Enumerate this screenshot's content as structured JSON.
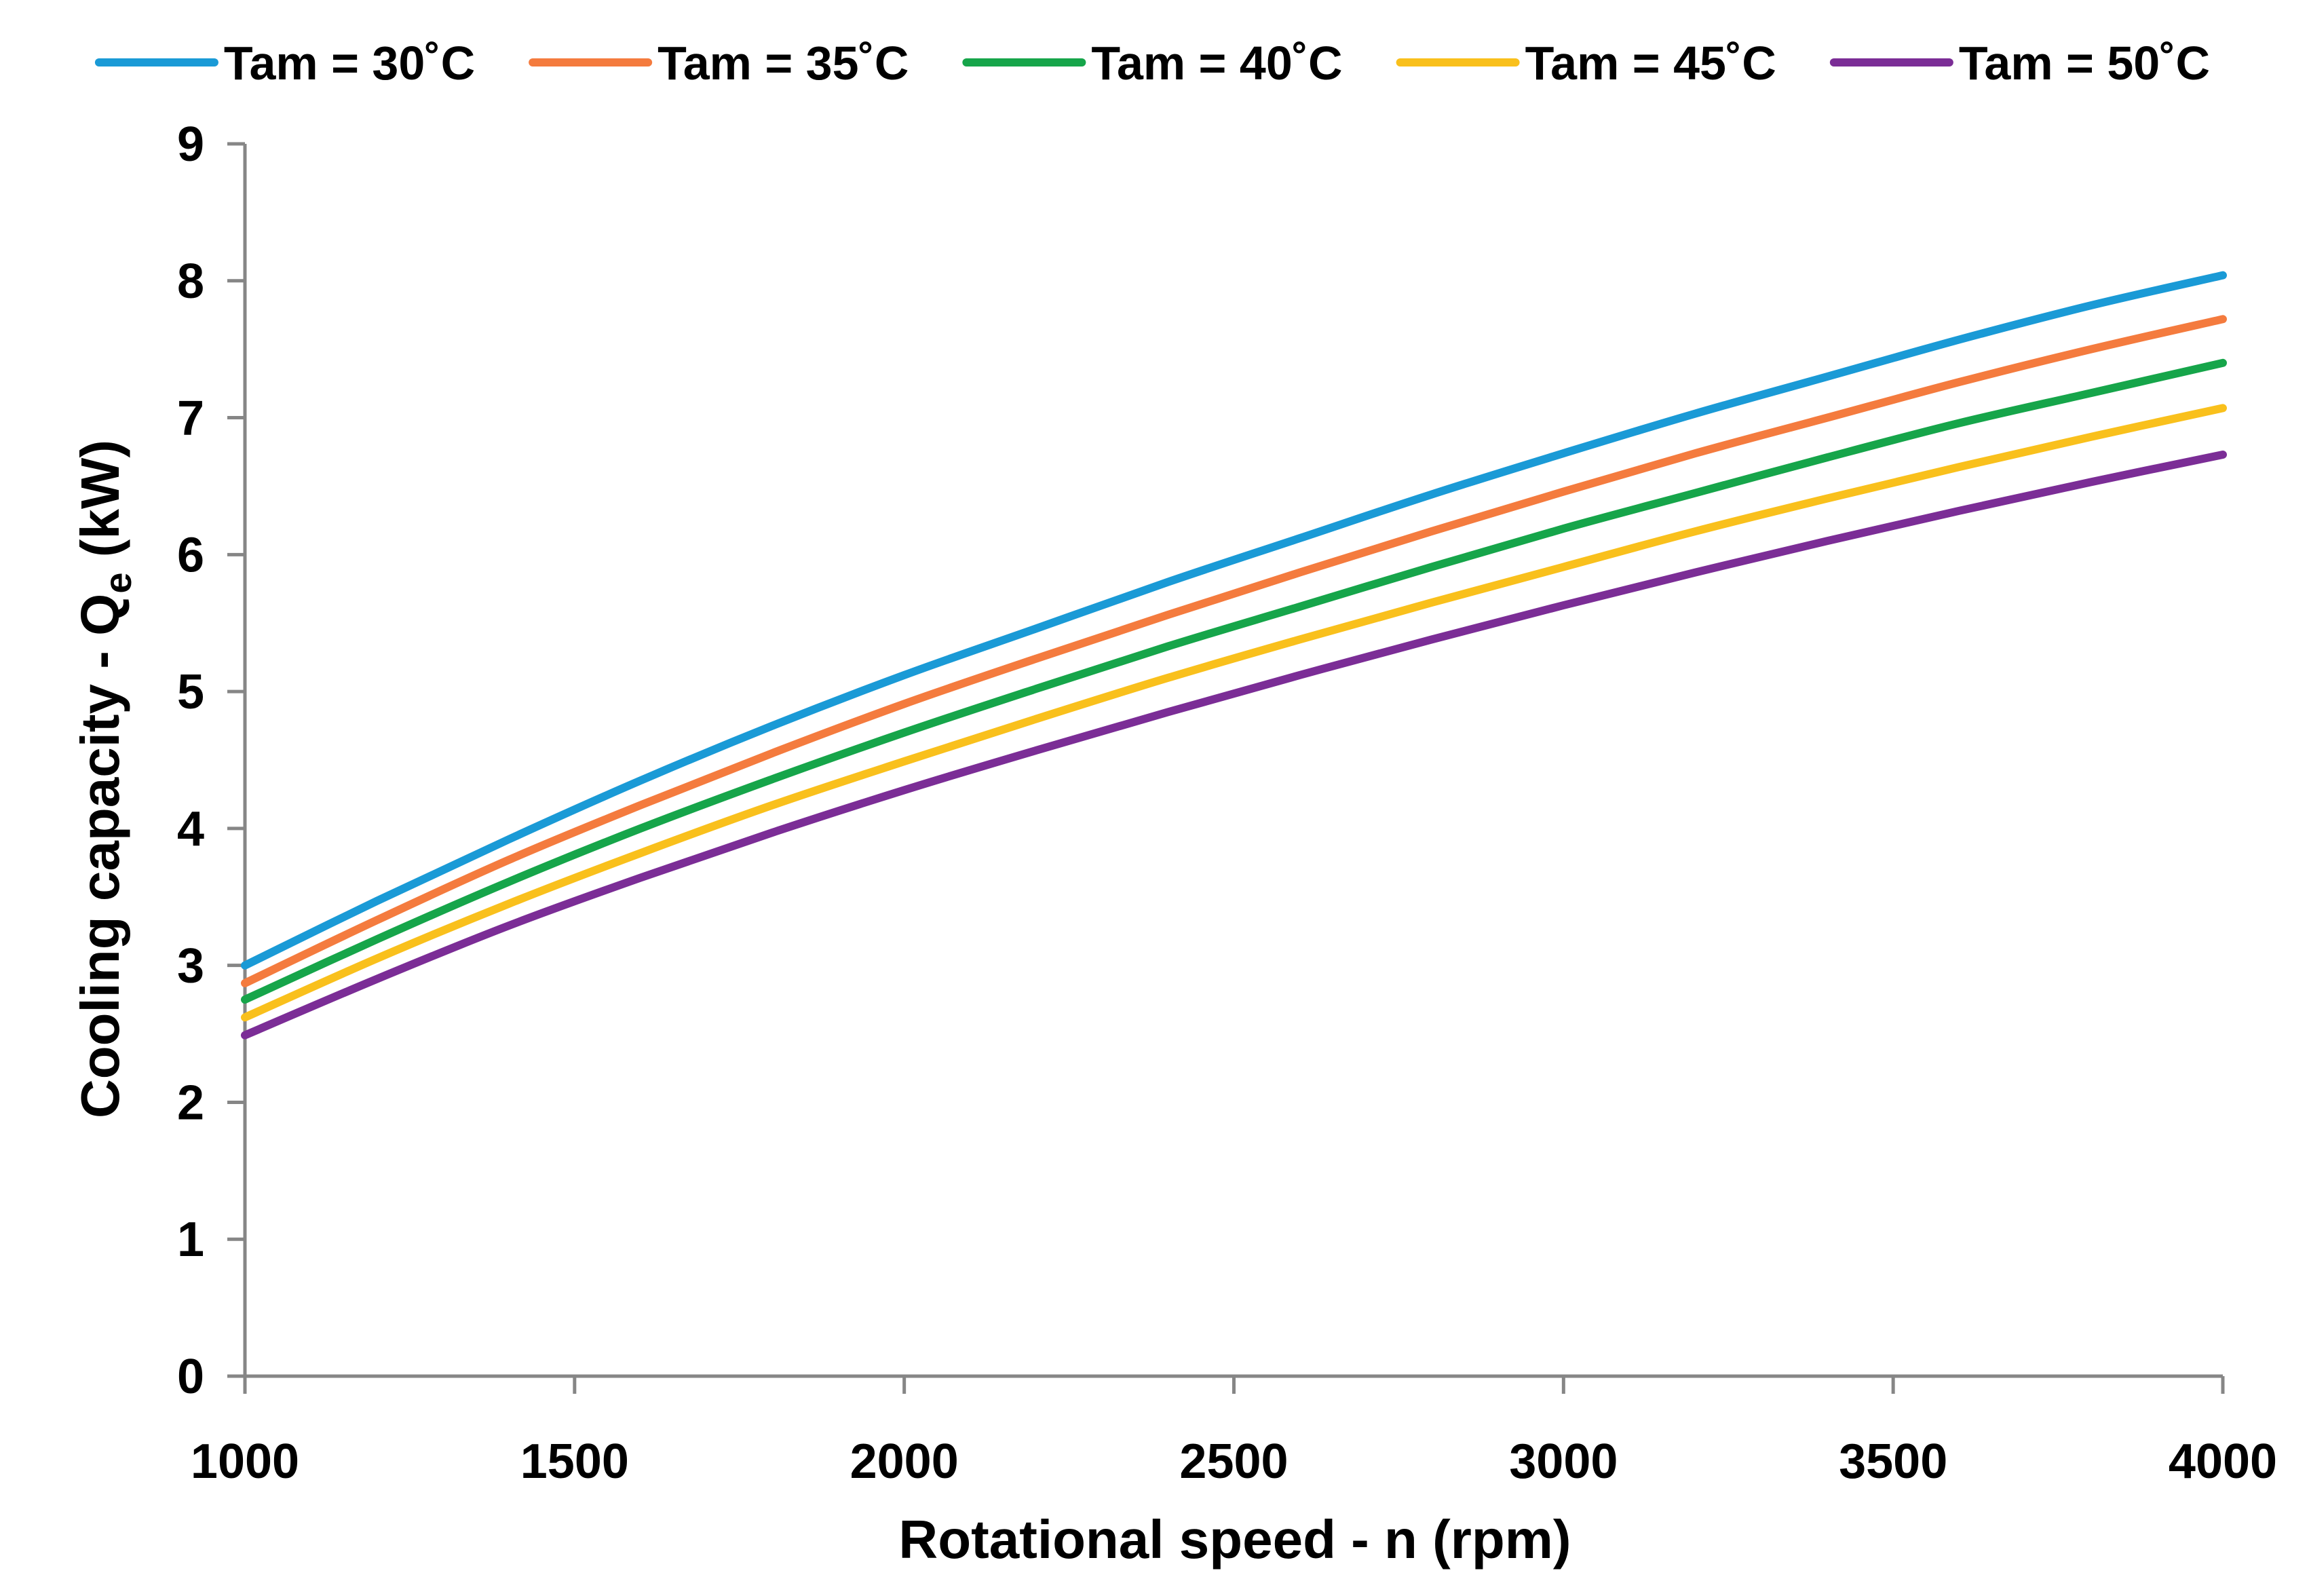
{
  "chart_data": {
    "type": "line",
    "title": "",
    "xlabel": "Rotational speed - n (rpm)",
    "ylabel_main": "Cooling capacity - Q",
    "ylabel_sub": "e",
    "ylabel_unit": " (kW)",
    "xlim": [
      1000,
      4000
    ],
    "ylim": [
      0,
      9
    ],
    "x_ticks": [
      "1000",
      "1500",
      "2000",
      "2500",
      "3000",
      "3500",
      "4000"
    ],
    "y_ticks": [
      "0",
      "1",
      "2",
      "3",
      "4",
      "5",
      "6",
      "7",
      "8",
      "9"
    ],
    "grid": false,
    "legend_position": "top",
    "x": [
      1000,
      1200,
      1400,
      1600,
      1800,
      2000,
      2200,
      2400,
      2600,
      2800,
      3000,
      3200,
      3400,
      3600,
      3800,
      4000
    ],
    "series": [
      {
        "name": "Tam = 30˚C",
        "color": "#1a9ad6",
        "values": [
          3.0,
          3.47,
          3.92,
          4.35,
          4.75,
          5.12,
          5.46,
          5.8,
          6.12,
          6.44,
          6.74,
          7.03,
          7.3,
          7.57,
          7.82,
          8.04
        ]
      },
      {
        "name": "Tam = 35˚C",
        "color": "#f47b3e",
        "values": [
          2.87,
          3.33,
          3.77,
          4.17,
          4.55,
          4.91,
          5.24,
          5.56,
          5.87,
          6.17,
          6.46,
          6.74,
          7.0,
          7.26,
          7.5,
          7.72
        ]
      },
      {
        "name": "Tam = 40˚C",
        "color": "#16a54a",
        "values": [
          2.75,
          3.19,
          3.61,
          4.0,
          4.36,
          4.7,
          5.02,
          5.33,
          5.62,
          5.91,
          6.19,
          6.45,
          6.71,
          6.96,
          7.18,
          7.4
        ]
      },
      {
        "name": "Tam = 45˚C",
        "color": "#f9c01c",
        "values": [
          2.62,
          3.05,
          3.45,
          3.82,
          4.17,
          4.49,
          4.8,
          5.1,
          5.38,
          5.65,
          5.91,
          6.17,
          6.41,
          6.64,
          6.86,
          7.07
        ]
      },
      {
        "name": "Tam = 50˚C",
        "color": "#7b2d96",
        "values": [
          2.49,
          2.9,
          3.29,
          3.64,
          3.97,
          4.28,
          4.57,
          4.85,
          5.12,
          5.38,
          5.63,
          5.87,
          6.1,
          6.32,
          6.53,
          6.73
        ]
      }
    ]
  }
}
